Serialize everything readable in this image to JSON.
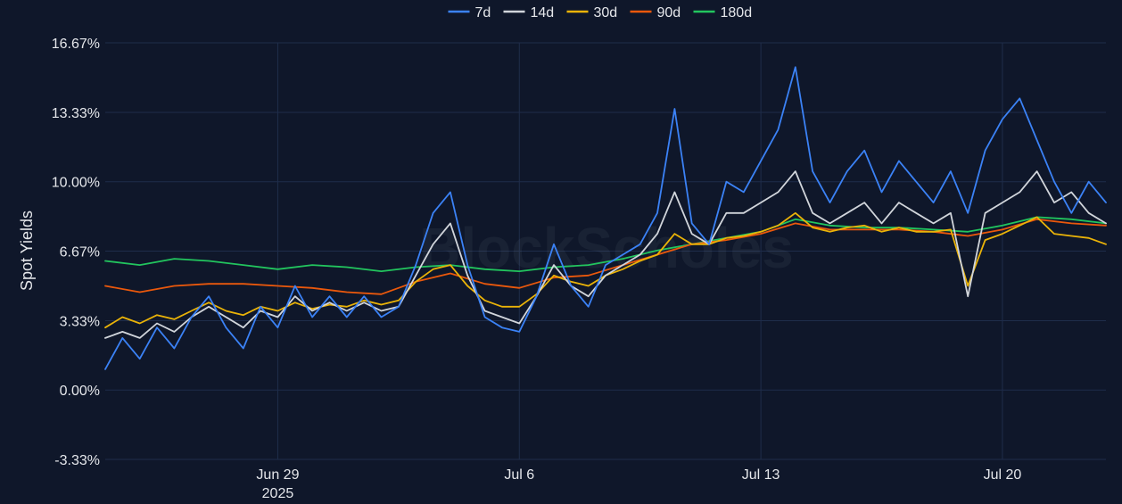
{
  "chart_data": {
    "type": "line",
    "title": "",
    "xlabel": "",
    "ylabel": "Spot Yields",
    "watermark": "BlockScholes",
    "legend_position": "top-center",
    "grid": true,
    "x_range": [
      "2025-06-24",
      "2025-07-23"
    ],
    "ylim": [
      -3.33,
      16.67
    ],
    "y_ticks": [
      {
        "value": 16.67,
        "label": "16.67%"
      },
      {
        "value": 13.33,
        "label": "13.33%"
      },
      {
        "value": 10.0,
        "label": "10.00%"
      },
      {
        "value": 6.67,
        "label": "6.67%"
      },
      {
        "value": 3.33,
        "label": "3.33%"
      },
      {
        "value": 0.0,
        "label": "0.00%"
      },
      {
        "value": -3.33,
        "label": "-3.33%"
      }
    ],
    "x_ticks": [
      {
        "date": "2025-06-29",
        "label": "Jun 29",
        "sublabel": "2025"
      },
      {
        "date": "2025-07-06",
        "label": "Jul 6",
        "sublabel": ""
      },
      {
        "date": "2025-07-13",
        "label": "Jul 13",
        "sublabel": ""
      },
      {
        "date": "2025-07-20",
        "label": "Jul 20",
        "sublabel": ""
      }
    ],
    "series": [
      {
        "name": "7d",
        "color": "#3b82f6",
        "points": [
          [
            "2025-06-24",
            1.0
          ],
          [
            "2025-06-24T12:00",
            2.5
          ],
          [
            "2025-06-25",
            1.5
          ],
          [
            "2025-06-25T12:00",
            3.0
          ],
          [
            "2025-06-26",
            2.0
          ],
          [
            "2025-06-26T12:00",
            3.5
          ],
          [
            "2025-06-27",
            4.5
          ],
          [
            "2025-06-27T12:00",
            3.0
          ],
          [
            "2025-06-28",
            2.0
          ],
          [
            "2025-06-28T12:00",
            4.0
          ],
          [
            "2025-06-29",
            3.0
          ],
          [
            "2025-06-29T12:00",
            5.0
          ],
          [
            "2025-06-30",
            3.5
          ],
          [
            "2025-06-30T12:00",
            4.5
          ],
          [
            "2025-07-01",
            3.5
          ],
          [
            "2025-07-01T12:00",
            4.5
          ],
          [
            "2025-07-02",
            3.5
          ],
          [
            "2025-07-02T12:00",
            4.0
          ],
          [
            "2025-07-03",
            6.0
          ],
          [
            "2025-07-03T12:00",
            8.5
          ],
          [
            "2025-07-04",
            9.5
          ],
          [
            "2025-07-04T12:00",
            6.0
          ],
          [
            "2025-07-05",
            3.5
          ],
          [
            "2025-07-05T12:00",
            3.0
          ],
          [
            "2025-07-06",
            2.8
          ],
          [
            "2025-07-06T12:00",
            4.5
          ],
          [
            "2025-07-07",
            7.0
          ],
          [
            "2025-07-07T12:00",
            5.0
          ],
          [
            "2025-07-08",
            4.0
          ],
          [
            "2025-07-08T12:00",
            6.0
          ],
          [
            "2025-07-09",
            6.5
          ],
          [
            "2025-07-09T12:00",
            7.0
          ],
          [
            "2025-07-10",
            8.5
          ],
          [
            "2025-07-10T12:00",
            13.5
          ],
          [
            "2025-07-11",
            8.0
          ],
          [
            "2025-07-11T12:00",
            7.0
          ],
          [
            "2025-07-12",
            10.0
          ],
          [
            "2025-07-12T12:00",
            9.5
          ],
          [
            "2025-07-13",
            11.0
          ],
          [
            "2025-07-13T12:00",
            12.5
          ],
          [
            "2025-07-14",
            15.5
          ],
          [
            "2025-07-14T12:00",
            10.5
          ],
          [
            "2025-07-15",
            9.0
          ],
          [
            "2025-07-15T12:00",
            10.5
          ],
          [
            "2025-07-16",
            11.5
          ],
          [
            "2025-07-16T12:00",
            9.5
          ],
          [
            "2025-07-17",
            11.0
          ],
          [
            "2025-07-17T12:00",
            10.0
          ],
          [
            "2025-07-18",
            9.0
          ],
          [
            "2025-07-18T12:00",
            10.5
          ],
          [
            "2025-07-19",
            8.5
          ],
          [
            "2025-07-19T12:00",
            11.5
          ],
          [
            "2025-07-20",
            13.0
          ],
          [
            "2025-07-20T12:00",
            14.0
          ],
          [
            "2025-07-21",
            12.0
          ],
          [
            "2025-07-21T12:00",
            10.0
          ],
          [
            "2025-07-22",
            8.5
          ],
          [
            "2025-07-22T12:00",
            10.0
          ],
          [
            "2025-07-23",
            9.0
          ]
        ]
      },
      {
        "name": "14d",
        "color": "#d1d5db",
        "points": [
          [
            "2025-06-24",
            2.5
          ],
          [
            "2025-06-24T12:00",
            2.8
          ],
          [
            "2025-06-25",
            2.5
          ],
          [
            "2025-06-25T12:00",
            3.2
          ],
          [
            "2025-06-26",
            2.8
          ],
          [
            "2025-06-26T12:00",
            3.5
          ],
          [
            "2025-06-27",
            4.0
          ],
          [
            "2025-06-27T12:00",
            3.5
          ],
          [
            "2025-06-28",
            3.0
          ],
          [
            "2025-06-28T12:00",
            3.8
          ],
          [
            "2025-06-29",
            3.5
          ],
          [
            "2025-06-29T12:00",
            4.5
          ],
          [
            "2025-06-30",
            3.8
          ],
          [
            "2025-06-30T12:00",
            4.2
          ],
          [
            "2025-07-01",
            3.8
          ],
          [
            "2025-07-01T12:00",
            4.2
          ],
          [
            "2025-07-02",
            3.8
          ],
          [
            "2025-07-02T12:00",
            4.0
          ],
          [
            "2025-07-03",
            5.5
          ],
          [
            "2025-07-03T12:00",
            7.0
          ],
          [
            "2025-07-04",
            8.0
          ],
          [
            "2025-07-04T12:00",
            5.5
          ],
          [
            "2025-07-05",
            3.8
          ],
          [
            "2025-07-05T12:00",
            3.5
          ],
          [
            "2025-07-06",
            3.2
          ],
          [
            "2025-07-06T12:00",
            4.5
          ],
          [
            "2025-07-07",
            6.0
          ],
          [
            "2025-07-07T12:00",
            5.0
          ],
          [
            "2025-07-08",
            4.5
          ],
          [
            "2025-07-08T12:00",
            5.5
          ],
          [
            "2025-07-09",
            6.0
          ],
          [
            "2025-07-09T12:00",
            6.5
          ],
          [
            "2025-07-10",
            7.5
          ],
          [
            "2025-07-10T12:00",
            9.5
          ],
          [
            "2025-07-11",
            7.5
          ],
          [
            "2025-07-11T12:00",
            7.0
          ],
          [
            "2025-07-12",
            8.5
          ],
          [
            "2025-07-12T12:00",
            8.5
          ],
          [
            "2025-07-13",
            9.0
          ],
          [
            "2025-07-13T12:00",
            9.5
          ],
          [
            "2025-07-14",
            10.5
          ],
          [
            "2025-07-14T12:00",
            8.5
          ],
          [
            "2025-07-15",
            8.0
          ],
          [
            "2025-07-15T12:00",
            8.5
          ],
          [
            "2025-07-16",
            9.0
          ],
          [
            "2025-07-16T12:00",
            8.0
          ],
          [
            "2025-07-17",
            9.0
          ],
          [
            "2025-07-17T12:00",
            8.5
          ],
          [
            "2025-07-18",
            8.0
          ],
          [
            "2025-07-18T12:00",
            8.5
          ],
          [
            "2025-07-19",
            4.5
          ],
          [
            "2025-07-19T12:00",
            8.5
          ],
          [
            "2025-07-20",
            9.0
          ],
          [
            "2025-07-20T12:00",
            9.5
          ],
          [
            "2025-07-21",
            10.5
          ],
          [
            "2025-07-21T12:00",
            9.0
          ],
          [
            "2025-07-22",
            9.5
          ],
          [
            "2025-07-22T12:00",
            8.5
          ],
          [
            "2025-07-23",
            8.0
          ]
        ]
      },
      {
        "name": "30d",
        "color": "#eab308",
        "points": [
          [
            "2025-06-24",
            3.0
          ],
          [
            "2025-06-24T12:00",
            3.5
          ],
          [
            "2025-06-25",
            3.2
          ],
          [
            "2025-06-25T12:00",
            3.6
          ],
          [
            "2025-06-26",
            3.4
          ],
          [
            "2025-06-26T12:00",
            3.8
          ],
          [
            "2025-06-27",
            4.2
          ],
          [
            "2025-06-27T12:00",
            3.8
          ],
          [
            "2025-06-28",
            3.6
          ],
          [
            "2025-06-28T12:00",
            4.0
          ],
          [
            "2025-06-29",
            3.8
          ],
          [
            "2025-06-29T12:00",
            4.2
          ],
          [
            "2025-06-30",
            3.9
          ],
          [
            "2025-06-30T12:00",
            4.1
          ],
          [
            "2025-07-01",
            4.0
          ],
          [
            "2025-07-01T12:00",
            4.3
          ],
          [
            "2025-07-02",
            4.1
          ],
          [
            "2025-07-02T12:00",
            4.3
          ],
          [
            "2025-07-03",
            5.2
          ],
          [
            "2025-07-03T12:00",
            5.8
          ],
          [
            "2025-07-04",
            6.0
          ],
          [
            "2025-07-04T12:00",
            5.0
          ],
          [
            "2025-07-05",
            4.3
          ],
          [
            "2025-07-05T12:00",
            4.0
          ],
          [
            "2025-07-06",
            4.0
          ],
          [
            "2025-07-06T12:00",
            4.6
          ],
          [
            "2025-07-07",
            5.5
          ],
          [
            "2025-07-07T12:00",
            5.2
          ],
          [
            "2025-07-08",
            5.0
          ],
          [
            "2025-07-08T12:00",
            5.5
          ],
          [
            "2025-07-09",
            5.8
          ],
          [
            "2025-07-09T12:00",
            6.2
          ],
          [
            "2025-07-10",
            6.5
          ],
          [
            "2025-07-10T12:00",
            7.5
          ],
          [
            "2025-07-11",
            7.0
          ],
          [
            "2025-07-11T12:00",
            7.0
          ],
          [
            "2025-07-12",
            7.3
          ],
          [
            "2025-07-12T12:00",
            7.4
          ],
          [
            "2025-07-13",
            7.6
          ],
          [
            "2025-07-13T12:00",
            7.9
          ],
          [
            "2025-07-14",
            8.5
          ],
          [
            "2025-07-14T12:00",
            7.8
          ],
          [
            "2025-07-15",
            7.6
          ],
          [
            "2025-07-15T12:00",
            7.8
          ],
          [
            "2025-07-16",
            7.9
          ],
          [
            "2025-07-16T12:00",
            7.6
          ],
          [
            "2025-07-17",
            7.8
          ],
          [
            "2025-07-17T12:00",
            7.6
          ],
          [
            "2025-07-18",
            7.6
          ],
          [
            "2025-07-18T12:00",
            7.7
          ],
          [
            "2025-07-19",
            5.0
          ],
          [
            "2025-07-19T12:00",
            7.2
          ],
          [
            "2025-07-20",
            7.5
          ],
          [
            "2025-07-20T12:00",
            7.9
          ],
          [
            "2025-07-21",
            8.3
          ],
          [
            "2025-07-21T12:00",
            7.5
          ],
          [
            "2025-07-22",
            7.4
          ],
          [
            "2025-07-22T12:00",
            7.3
          ],
          [
            "2025-07-23",
            7.0
          ]
        ]
      },
      {
        "name": "90d",
        "color": "#ea580c",
        "points": [
          [
            "2025-06-24",
            5.0
          ],
          [
            "2025-06-25",
            4.7
          ],
          [
            "2025-06-26",
            5.0
          ],
          [
            "2025-06-27",
            5.1
          ],
          [
            "2025-06-28",
            5.1
          ],
          [
            "2025-06-29",
            5.0
          ],
          [
            "2025-06-30",
            4.9
          ],
          [
            "2025-07-01",
            4.7
          ],
          [
            "2025-07-02",
            4.6
          ],
          [
            "2025-07-03",
            5.2
          ],
          [
            "2025-07-04",
            5.6
          ],
          [
            "2025-07-05",
            5.1
          ],
          [
            "2025-07-06",
            4.9
          ],
          [
            "2025-07-07",
            5.4
          ],
          [
            "2025-07-08",
            5.5
          ],
          [
            "2025-07-09",
            6.0
          ],
          [
            "2025-07-10",
            6.5
          ],
          [
            "2025-07-11",
            7.0
          ],
          [
            "2025-07-12",
            7.2
          ],
          [
            "2025-07-13",
            7.5
          ],
          [
            "2025-07-14",
            8.0
          ],
          [
            "2025-07-15",
            7.7
          ],
          [
            "2025-07-16",
            7.7
          ],
          [
            "2025-07-17",
            7.7
          ],
          [
            "2025-07-18",
            7.6
          ],
          [
            "2025-07-19",
            7.4
          ],
          [
            "2025-07-20",
            7.7
          ],
          [
            "2025-07-21",
            8.2
          ],
          [
            "2025-07-22",
            8.0
          ],
          [
            "2025-07-23",
            7.9
          ]
        ]
      },
      {
        "name": "180d",
        "color": "#22c55e",
        "points": [
          [
            "2025-06-24",
            6.2
          ],
          [
            "2025-06-25",
            6.0
          ],
          [
            "2025-06-26",
            6.3
          ],
          [
            "2025-06-27",
            6.2
          ],
          [
            "2025-06-28",
            6.0
          ],
          [
            "2025-06-29",
            5.8
          ],
          [
            "2025-06-30",
            6.0
          ],
          [
            "2025-07-01",
            5.9
          ],
          [
            "2025-07-02",
            5.7
          ],
          [
            "2025-07-03",
            5.9
          ],
          [
            "2025-07-04",
            6.0
          ],
          [
            "2025-07-05",
            5.8
          ],
          [
            "2025-07-06",
            5.7
          ],
          [
            "2025-07-07",
            5.9
          ],
          [
            "2025-07-08",
            6.0
          ],
          [
            "2025-07-09",
            6.3
          ],
          [
            "2025-07-10",
            6.7
          ],
          [
            "2025-07-11",
            7.0
          ],
          [
            "2025-07-12",
            7.3
          ],
          [
            "2025-07-13",
            7.6
          ],
          [
            "2025-07-14",
            8.2
          ],
          [
            "2025-07-15",
            7.9
          ],
          [
            "2025-07-16",
            7.8
          ],
          [
            "2025-07-17",
            7.8
          ],
          [
            "2025-07-18",
            7.7
          ],
          [
            "2025-07-19",
            7.6
          ],
          [
            "2025-07-20",
            7.9
          ],
          [
            "2025-07-21",
            8.3
          ],
          [
            "2025-07-22",
            8.2
          ],
          [
            "2025-07-23",
            8.0
          ]
        ]
      }
    ]
  }
}
